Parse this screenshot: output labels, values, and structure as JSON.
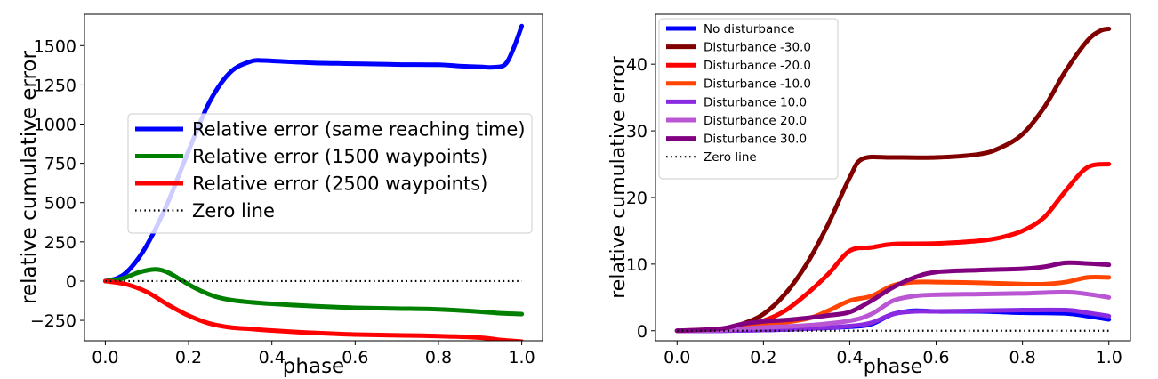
{
  "chart_data": [
    {
      "type": "line",
      "title": "",
      "xlabel": "phase",
      "ylabel": "relative cumulative error",
      "xlim": [
        -0.05,
        1.05
      ],
      "ylim": [
        -380,
        1700
      ],
      "xticks": [
        0.0,
        0.2,
        0.4,
        0.6,
        0.8,
        1.0
      ],
      "xtick_labels": [
        "0.0",
        "0.2",
        "0.4",
        "0.6",
        "0.8",
        "1.0"
      ],
      "yticks": [
        -250,
        0,
        250,
        500,
        750,
        1000,
        1250,
        1500
      ],
      "ytick_labels": [
        "−250",
        "0",
        "250",
        "500",
        "750",
        "1000",
        "1250",
        "1500"
      ],
      "legend_position": "center-right",
      "series": [
        {
          "name": "Relative error (same reaching time)",
          "color": "#0000ff",
          "style": "solid",
          "x": [
            0,
            0.03,
            0.06,
            0.1,
            0.15,
            0.2,
            0.25,
            0.3,
            0.35,
            0.38,
            0.42,
            0.5,
            0.6,
            0.7,
            0.8,
            0.85,
            0.9,
            0.93,
            0.96,
            0.98,
            1.0
          ],
          "y": [
            0,
            20,
            80,
            230,
            500,
            830,
            1140,
            1330,
            1400,
            1405,
            1400,
            1390,
            1385,
            1380,
            1378,
            1370,
            1365,
            1362,
            1380,
            1480,
            1625
          ]
        },
        {
          "name": "Relative error (1500 waypoints)",
          "color": "#008000",
          "style": "solid",
          "x": [
            0,
            0.04,
            0.08,
            0.12,
            0.15,
            0.18,
            0.22,
            0.26,
            0.3,
            0.35,
            0.4,
            0.5,
            0.6,
            0.7,
            0.8,
            0.9,
            0.95,
            1.0
          ],
          "y": [
            0,
            15,
            55,
            75,
            55,
            10,
            -50,
            -95,
            -120,
            -135,
            -145,
            -160,
            -170,
            -175,
            -180,
            -195,
            -205,
            -210
          ]
        },
        {
          "name": "Relative error (2500 waypoints)",
          "color": "#ff0000",
          "style": "solid",
          "x": [
            0,
            0.05,
            0.1,
            0.15,
            0.2,
            0.25,
            0.3,
            0.35,
            0.4,
            0.5,
            0.6,
            0.7,
            0.8,
            0.9,
            0.95,
            1.0
          ],
          "y": [
            0,
            -20,
            -70,
            -150,
            -220,
            -270,
            -295,
            -305,
            -315,
            -330,
            -340,
            -345,
            -350,
            -360,
            -375,
            -385
          ]
        },
        {
          "name": "Zero line",
          "color": "#000000",
          "style": "dotted",
          "x": [
            0,
            1.0
          ],
          "y": [
            0,
            0
          ]
        }
      ]
    },
    {
      "type": "line",
      "title": "",
      "xlabel": "phase",
      "ylabel": "relative cumulative error",
      "xlim": [
        -0.05,
        1.05
      ],
      "ylim": [
        -1.5,
        47.5
      ],
      "xticks": [
        0.0,
        0.2,
        0.4,
        0.6,
        0.8,
        1.0
      ],
      "xtick_labels": [
        "0.0",
        "0.2",
        "0.4",
        "0.6",
        "0.8",
        "1.0"
      ],
      "yticks": [
        0,
        10,
        20,
        30,
        40
      ],
      "ytick_labels": [
        "0",
        "10",
        "20",
        "30",
        "40"
      ],
      "legend_position": "top-left",
      "series": [
        {
          "name": "No disturbance",
          "color": "#0000ff",
          "style": "solid",
          "x": [
            0,
            0.1,
            0.2,
            0.3,
            0.4,
            0.45,
            0.5,
            0.55,
            0.6,
            0.7,
            0.8,
            0.9,
            0.95,
            1.0
          ],
          "y": [
            0,
            0,
            0.1,
            0.3,
            0.6,
            1.0,
            2.5,
            3.0,
            2.9,
            2.9,
            2.7,
            2.6,
            2.2,
            1.7
          ]
        },
        {
          "name": "Disturbance -30.0",
          "color": "#800000",
          "style": "solid",
          "x": [
            0,
            0.1,
            0.15,
            0.2,
            0.25,
            0.3,
            0.35,
            0.4,
            0.43,
            0.5,
            0.6,
            0.7,
            0.75,
            0.8,
            0.85,
            0.9,
            0.95,
            0.98,
            1.0
          ],
          "y": [
            0,
            0.2,
            1.0,
            2.5,
            5.5,
            10,
            16,
            23,
            25.8,
            26,
            26,
            26.5,
            27.5,
            29.5,
            33.5,
            39,
            43.5,
            45,
            45.3
          ]
        },
        {
          "name": "Disturbance -20.0",
          "color": "#ff0000",
          "style": "solid",
          "x": [
            0,
            0.1,
            0.15,
            0.2,
            0.25,
            0.3,
            0.35,
            0.4,
            0.45,
            0.5,
            0.6,
            0.7,
            0.75,
            0.8,
            0.85,
            0.9,
            0.95,
            1.0
          ],
          "y": [
            0,
            0.2,
            0.8,
            1.5,
            3.0,
            5.5,
            8.5,
            12,
            12.5,
            13,
            13.1,
            13.5,
            14,
            15,
            17,
            21,
            24.5,
            25
          ]
        },
        {
          "name": "Disturbance -10.0",
          "color": "#ff4500",
          "style": "solid",
          "x": [
            0,
            0.1,
            0.2,
            0.3,
            0.35,
            0.4,
            0.45,
            0.5,
            0.55,
            0.6,
            0.7,
            0.8,
            0.85,
            0.9,
            0.95,
            1.0
          ],
          "y": [
            0,
            0.1,
            0.8,
            1.8,
            3.0,
            4.5,
            5.2,
            6.8,
            7.3,
            7.3,
            7.2,
            7.0,
            7.0,
            7.3,
            8.0,
            8.0
          ]
        },
        {
          "name": "Disturbance 10.0",
          "color": "#8a2be2",
          "style": "solid",
          "x": [
            0,
            0.1,
            0.2,
            0.3,
            0.4,
            0.45,
            0.5,
            0.55,
            0.6,
            0.7,
            0.8,
            0.9,
            0.95,
            1.0
          ],
          "y": [
            0,
            0,
            0.1,
            0.3,
            0.7,
            1.2,
            2.5,
            2.9,
            2.9,
            3.0,
            3.1,
            3.1,
            2.7,
            2.2
          ]
        },
        {
          "name": "Disturbance 20.0",
          "color": "#ba55d3",
          "style": "solid",
          "x": [
            0,
            0.1,
            0.2,
            0.3,
            0.4,
            0.45,
            0.5,
            0.55,
            0.6,
            0.7,
            0.8,
            0.9,
            0.95,
            1.0
          ],
          "y": [
            0,
            0.1,
            0.5,
            0.8,
            1.5,
            2.5,
            4.5,
            5.2,
            5.4,
            5.5,
            5.6,
            5.8,
            5.5,
            5.0
          ]
        },
        {
          "name": "Disturbance 30.0",
          "color": "#800080",
          "style": "solid",
          "x": [
            0,
            0.1,
            0.15,
            0.2,
            0.25,
            0.3,
            0.35,
            0.4,
            0.45,
            0.5,
            0.55,
            0.6,
            0.7,
            0.8,
            0.85,
            0.9,
            0.95,
            1.0
          ],
          "y": [
            0,
            0.3,
            1.0,
            1.4,
            1.6,
            1.9,
            2.3,
            2.8,
            4.5,
            6.5,
            8.0,
            8.8,
            9.1,
            9.3,
            9.6,
            10.2,
            10.1,
            9.9
          ]
        },
        {
          "name": "Zero line",
          "color": "#000000",
          "style": "dotted",
          "x": [
            0,
            1.0
          ],
          "y": [
            0,
            0
          ]
        }
      ]
    }
  ]
}
